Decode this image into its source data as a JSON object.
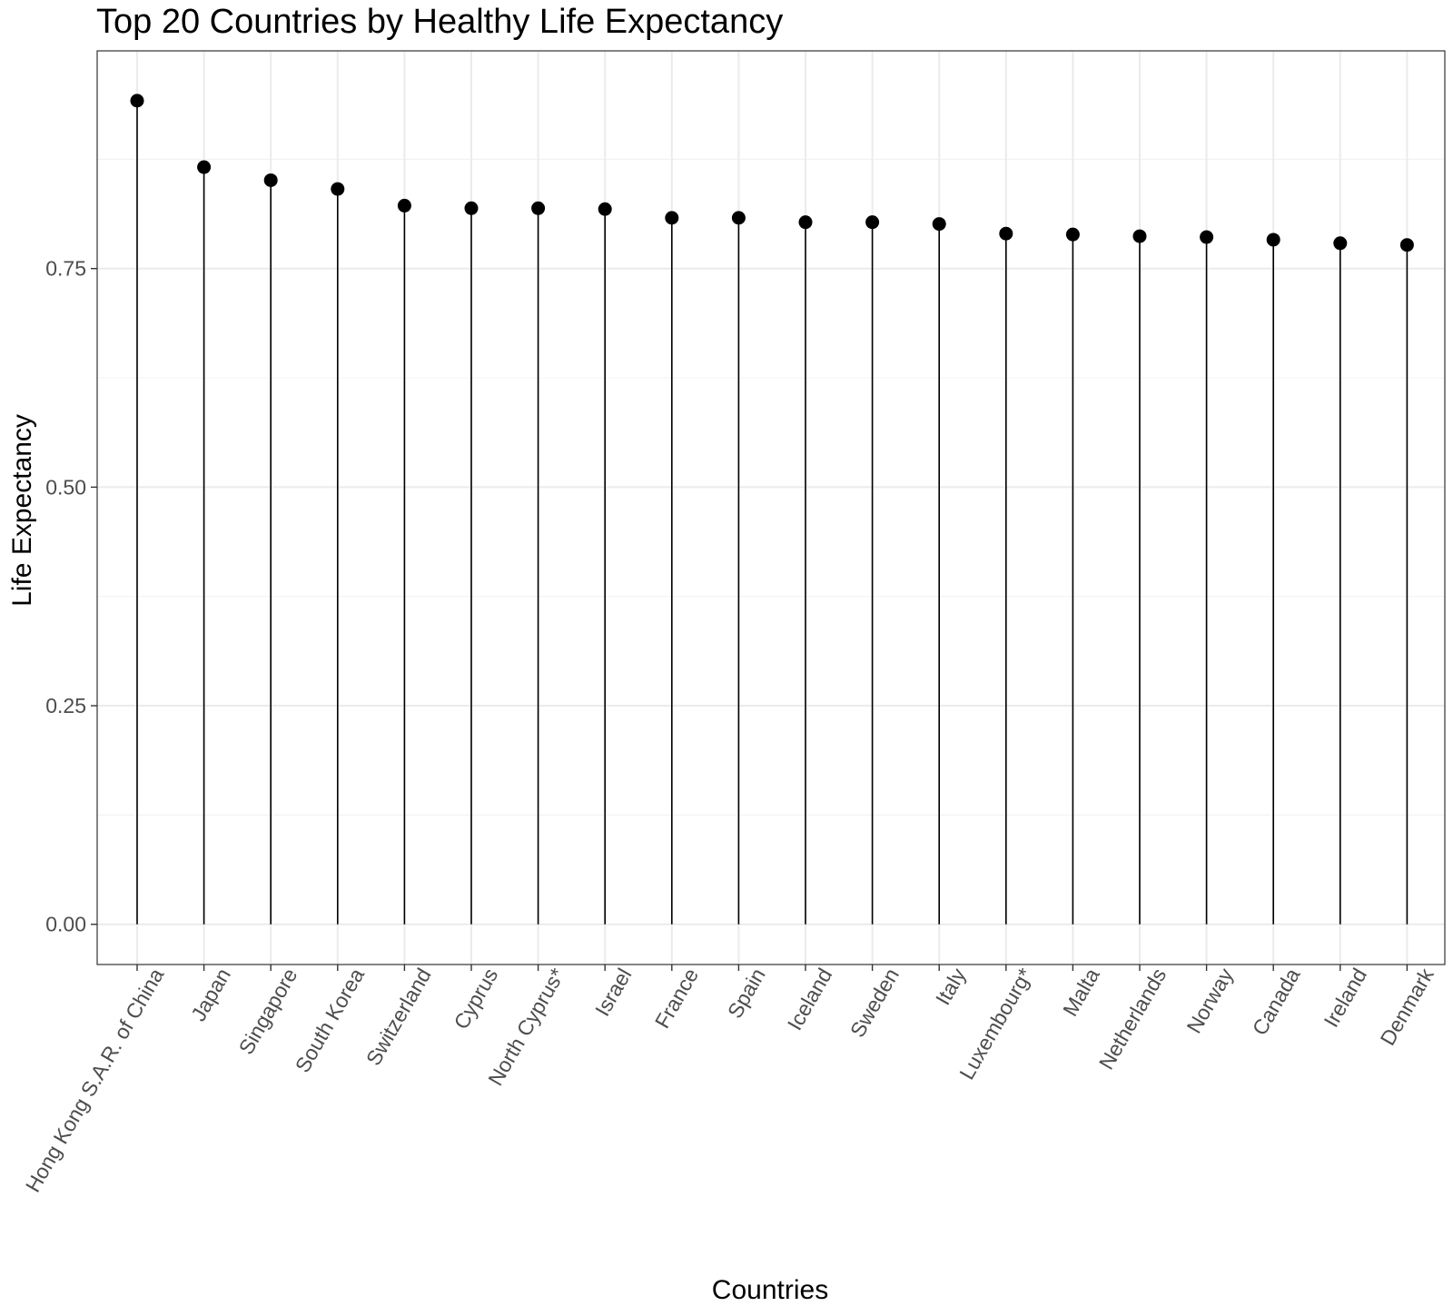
{
  "chart_data": {
    "type": "lollipop",
    "title": "Top 20 Countries by Healthy Life Expectancy",
    "xlabel": "Countries",
    "ylabel": "Life Expectancy",
    "categories": [
      "Hong Kong S.A.R. of China",
      "Japan",
      "Singapore",
      "South Korea",
      "Switzerland",
      "Cyprus",
      "North Cyprus*",
      "Israel",
      "France",
      "Spain",
      "Iceland",
      "Sweden",
      "Italy",
      "Luxembourg*",
      "Malta",
      "Netherlands",
      "Norway",
      "Canada",
      "Ireland",
      "Denmark"
    ],
    "values": [
      0.942,
      0.866,
      0.851,
      0.841,
      0.822,
      0.819,
      0.819,
      0.818,
      0.808,
      0.808,
      0.803,
      0.803,
      0.801,
      0.79,
      0.789,
      0.787,
      0.786,
      0.783,
      0.779,
      0.777
    ],
    "ylim": [
      -0.046,
      0.999
    ],
    "yticks": [
      0.0,
      0.25,
      0.5,
      0.75
    ],
    "ytick_labels": [
      "0.00",
      "0.25",
      "0.50",
      "0.75"
    ],
    "grid": true,
    "legend": "none",
    "colors": {
      "points": "#000000",
      "stems": "#000000",
      "grid": "#ebebeb",
      "panel_border": "#333333"
    }
  }
}
